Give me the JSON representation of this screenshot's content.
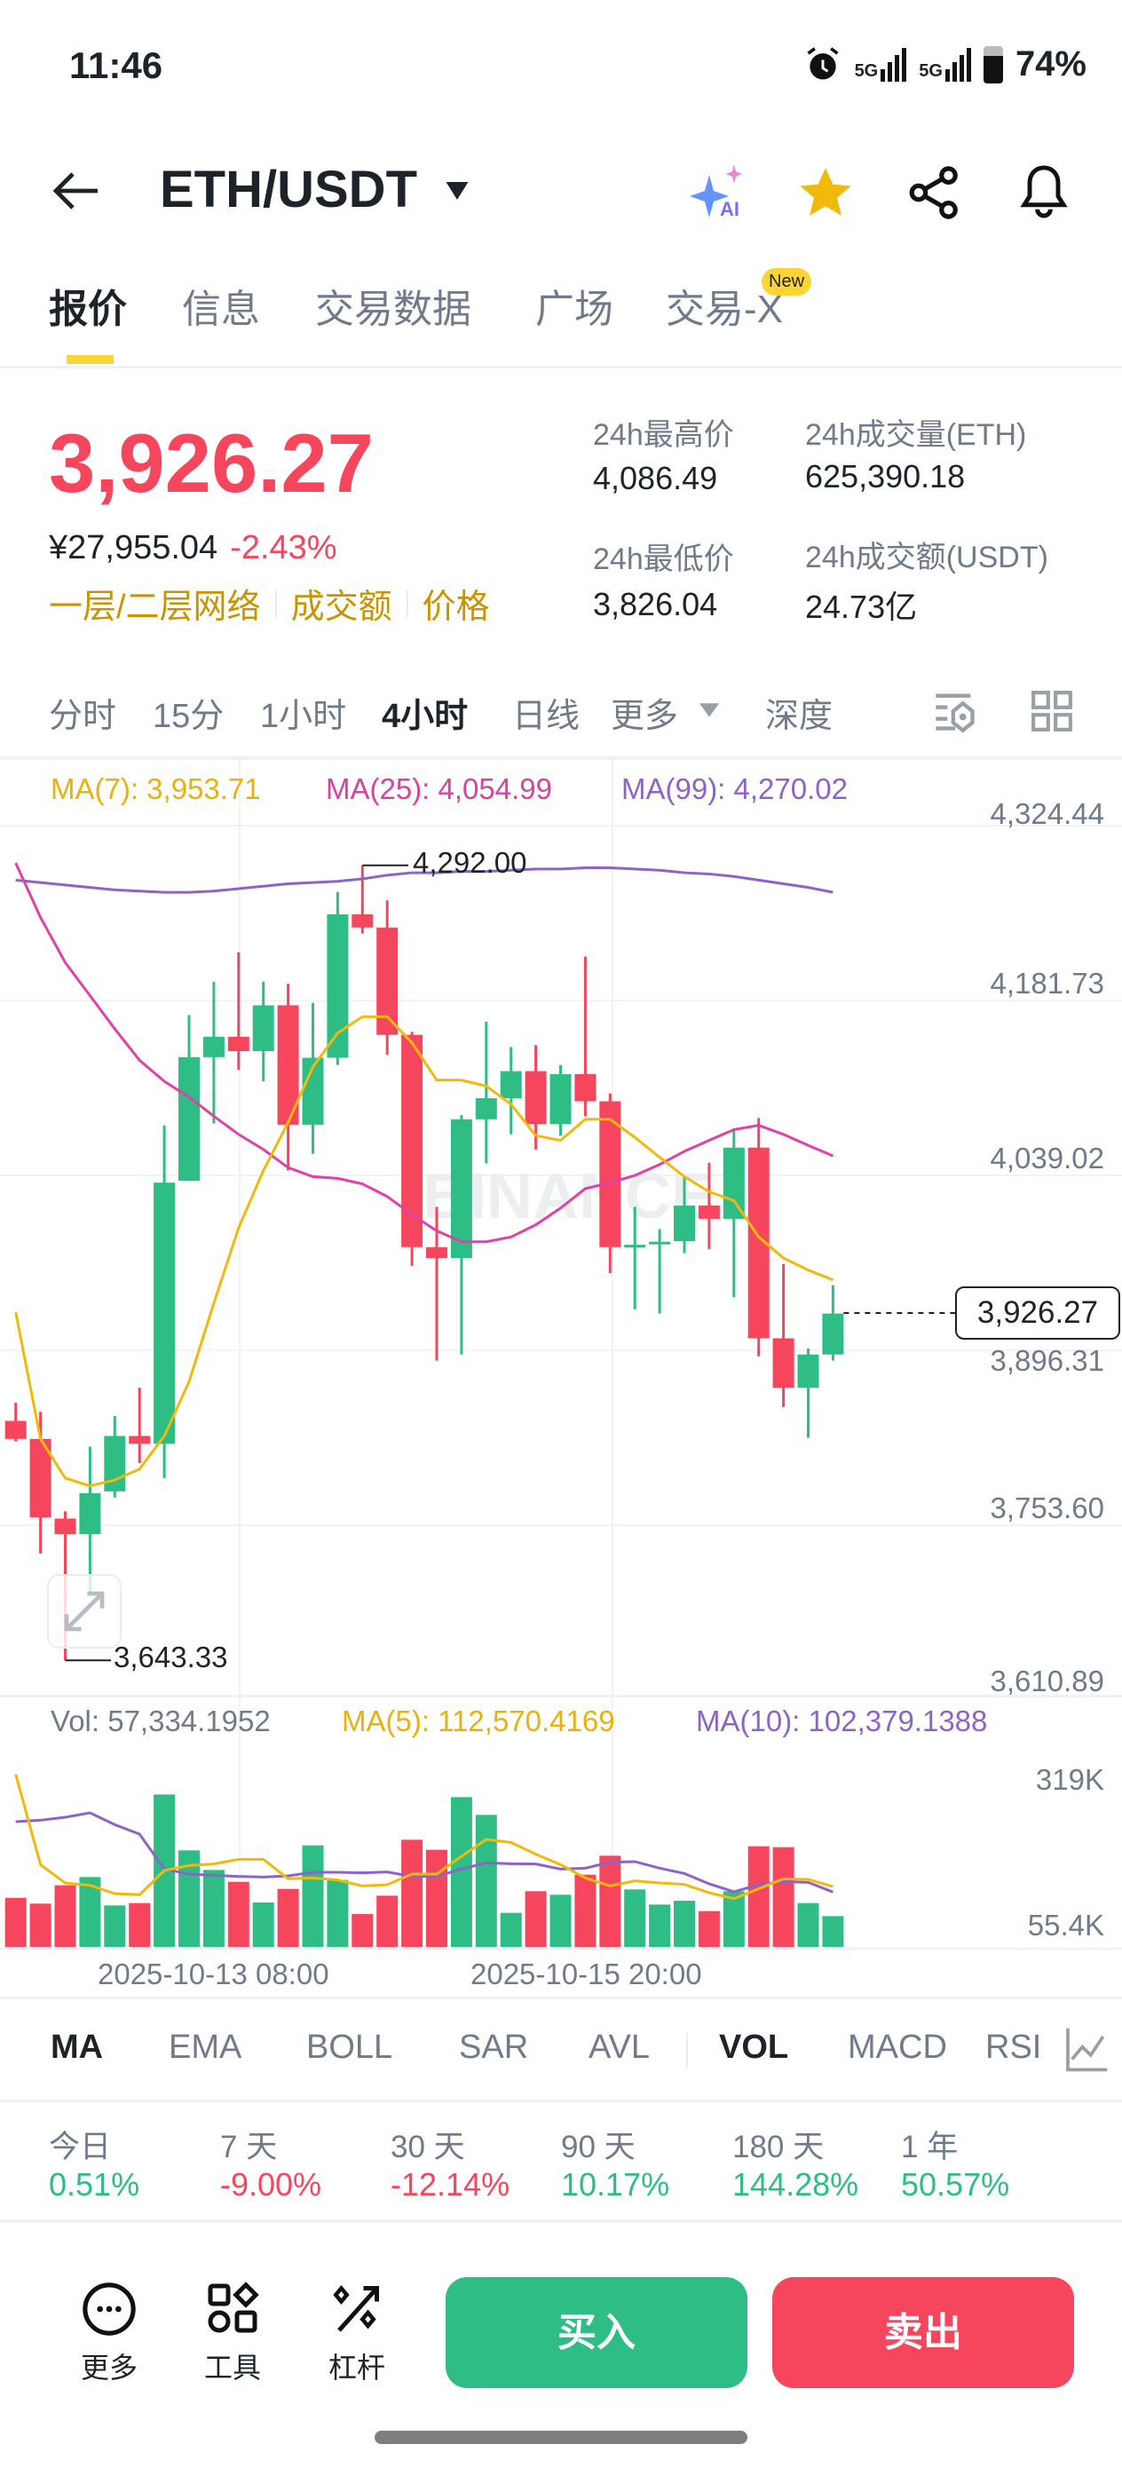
{
  "status": {
    "time": "11:46",
    "battery": "74%",
    "net1": "5G",
    "net2": "5G"
  },
  "header": {
    "title": "ETH/USDT",
    "ai_label": "AI"
  },
  "tabs": [
    {
      "label": "报价"
    },
    {
      "label": "信息"
    },
    {
      "label": "交易数据"
    },
    {
      "label": "广场"
    },
    {
      "label": "交易-X",
      "badge": "New"
    }
  ],
  "ticker": {
    "price": "3,926.27",
    "cny": "¥27,955.04",
    "change": "-2.43%",
    "links": [
      "一层/二层网络",
      "成交额",
      "价格"
    ],
    "high_label": "24h最高价",
    "high": "4,086.49",
    "low_label": "24h最低价",
    "low": "3,826.04",
    "vol_label": "24h成交量(ETH)",
    "vol": "625,390.18",
    "amt_label": "24h成交额(USDT)",
    "amt": "24.73亿"
  },
  "intervals": [
    "分时",
    "15分",
    "1小时",
    "4小时",
    "日线",
    "更多",
    "深度"
  ],
  "active_interval": "4小时",
  "colors": {
    "up": "#2EBD85",
    "down": "#F6465D",
    "ma7": "#F0B90B",
    "ma25": "#E040A8",
    "ma99": "#8E63C7",
    "accent": "#FCD535"
  },
  "chart_data": [
    {
      "type": "candlestick",
      "legend": {
        "ma7": "MA(7): 3,953.71",
        "ma25": "MA(25): 4,054.99",
        "ma99": "MA(99): 4,270.02"
      },
      "y_ticks": [
        "4,324.44",
        "4,181.73",
        "4,039.02",
        "3,896.31",
        "3,753.60",
        "3,610.89"
      ],
      "ylim": [
        3610.89,
        4324.44
      ],
      "x_labels": [
        "2025-10-13 08:00",
        "2025-10-15 20:00"
      ],
      "current_price": "3,926.27",
      "high_marker": "4,292.00",
      "low_marker": "3,643.33",
      "watermark": "BINANCE",
      "candles": [
        [
          3838.7,
          3853.5,
          3822,
          3824.0
        ],
        [
          3824.0,
          3846.1,
          3730.5,
          3760.0
        ],
        [
          3759.0,
          3764.9,
          3643.33,
          3746.2
        ],
        [
          3746.2,
          3817.6,
          3696.0,
          3779.7
        ],
        [
          3781.2,
          3842.7,
          3776.2,
          3826.4
        ],
        [
          3826.4,
          3865.8,
          3804.3,
          3820.0
        ],
        [
          3820.0,
          4079.9,
          3792.0,
          4033.1
        ],
        [
          4034.6,
          4169.9,
          4034.6,
          4135.5
        ],
        [
          4135.5,
          4197.0,
          4081.3,
          4152.2
        ],
        [
          4152.2,
          4221.1,
          4125.1,
          4140.4
        ],
        [
          4140.4,
          4197.0,
          4115.8,
          4177.8
        ],
        [
          4177.8,
          4195.5,
          4043.0,
          4080.4
        ],
        [
          4080.4,
          4179.8,
          4056.7,
          4135.0
        ],
        [
          4135.0,
          4270.3,
          4129.1,
          4252.1
        ],
        [
          4252.1,
          4292.0,
          4236.3,
          4241.3
        ],
        [
          4241.3,
          4263.4,
          4137.4,
          4153.7
        ],
        [
          4153.7,
          4156.1,
          3965.2,
          3980.5
        ],
        [
          3980.5,
          4013.4,
          3887.9,
          3971.6
        ],
        [
          3971.6,
          4088.2,
          3892.9,
          4084.8
        ],
        [
          4084.8,
          4164.5,
          4048.9,
          4102.0
        ],
        [
          4102.0,
          4143.8,
          4072.5,
          4124.1
        ],
        [
          4124.1,
          4145.3,
          4060.2,
          4080.8
        ],
        [
          4080.8,
          4129.1,
          4071.5,
          4121.7
        ],
        [
          4121.7,
          4217.6,
          4087.2,
          4099.5
        ],
        [
          4099.5,
          4105.9,
          3959.3,
          3980.5
        ],
        [
          3980.5,
          4013.4,
          3929.8,
          3982.4
        ],
        [
          3982.9,
          3995.2,
          3926.3,
          3984.9
        ],
        [
          3985.4,
          4037.0,
          3975.5,
          4014.4
        ],
        [
          4014.4,
          4049.3,
          3979.0,
          4003.6
        ],
        [
          4003.6,
          4077.4,
          3939.6,
          4061.7
        ],
        [
          4061.7,
          4085.8,
          3891.4,
          3906.1
        ],
        [
          3906.1,
          3966.7,
          3850.0,
          3865.8
        ],
        [
          3865.8,
          3897.8,
          3825.0,
          3892.9
        ],
        [
          3892.9,
          3949.5,
          3887.9,
          3926.27
        ]
      ],
      "ma7": [
        3927.3,
        3824.0,
        3792.0,
        3785.6,
        3790.5,
        3799.4,
        3826.4,
        3870.7,
        3934.7,
        3996.2,
        4043.0,
        4082.3,
        4127.6,
        4155.2,
        4168.5,
        4168.5,
        4147.3,
        4116.8,
        4116.8,
        4111.9,
        4097.1,
        4071.5,
        4067.6,
        4084.8,
        4084.8,
        4070.0,
        4053.8,
        4038.0,
        4025.7,
        4018.4,
        3988.8,
        3971.6,
        3961.8,
        3953.71
      ],
      "ma25": [
        4293.9,
        4249.6,
        4212.7,
        4185.7,
        4158.6,
        4133.0,
        4115.8,
        4103.0,
        4087.3,
        4072.5,
        4060.2,
        4045.4,
        4038.0,
        4036.6,
        4032.1,
        4021.8,
        4007.0,
        3993.8,
        3984.9,
        3984.9,
        3988.8,
        3998.7,
        4012.4,
        4028.2,
        4033.1,
        4039.0,
        4047.9,
        4058.7,
        4067.6,
        4076.4,
        4079.9,
        4072.5,
        4063.6,
        4054.99
      ],
      "ma99": [
        4280,
        4278,
        4276,
        4274,
        4272,
        4271,
        4270,
        4270,
        4271,
        4273,
        4275,
        4277,
        4278,
        4279,
        4281,
        4284,
        4286,
        4286,
        4287,
        4287,
        4288,
        4289,
        4289,
        4290,
        4290,
        4289,
        4288,
        4286,
        4285,
        4283,
        4280,
        4277,
        4274,
        4270.02
      ]
    },
    {
      "type": "bar",
      "legend": {
        "vol": "Vol: 57,334.1952",
        "ma5": "MA(5): 112,570.4169",
        "ma10": "MA(10): 102,379.1388"
      },
      "y_ticks": [
        "319K",
        "55.4K"
      ],
      "unit": "K",
      "values": [
        91.6,
        80.6,
        114.8,
        130.3,
        77.3,
        81.7,
        284.3,
        180.0,
        143.5,
        121.4,
        82.8,
        108.2,
        189.3,
        124.8,
        61.3,
        95.5,
        199.8,
        181.1,
        279.3,
        246.2,
        63.5,
        103.8,
        97.2,
        134.7,
        170.0,
        107.1,
        78.9,
        86.1,
        66.8,
        103.8,
        187.7,
        186.0,
        81.7,
        57.33
      ],
      "ma5": [
        321.8,
        153.5,
        119.2,
        114.8,
        99.4,
        97.2,
        142.4,
        151.8,
        154.6,
        163.4,
        163.4,
        127,
        128.6,
        124.8,
        113.7,
        115.9,
        135.8,
        135.8,
        168.9,
        200.4,
        194.9,
        172.8,
        153.5,
        128.6,
        113.7,
        123.1,
        119.2,
        116.5,
        101,
        90,
        108.2,
        127,
        125.9,
        112.57
      ],
      "ma10": [
        233.5,
        236.3,
        241.8,
        250,
        228,
        210.3,
        145.2,
        135.8,
        133.6,
        131.4,
        130.3,
        132.5,
        139.1,
        139.1,
        138,
        139.7,
        131.4,
        131.4,
        145.2,
        156.8,
        155.1,
        154.6,
        145.2,
        146.8,
        157.9,
        159,
        146.8,
        136.9,
        117.6,
        102.7,
        115.9,
        122,
        120.3,
        102.38
      ]
    }
  ],
  "indicators": [
    "MA",
    "EMA",
    "BOLL",
    "SAR",
    "AVL",
    "VOL",
    "MACD",
    "RSI"
  ],
  "performance": [
    {
      "label": "今日",
      "value": "0.51%",
      "dir": "up"
    },
    {
      "label": "7 天",
      "value": "-9.00%",
      "dir": "down"
    },
    {
      "label": "30 天",
      "value": "-12.14%",
      "dir": "down"
    },
    {
      "label": "90 天",
      "value": "10.17%",
      "dir": "up"
    },
    {
      "label": "180 天",
      "value": "144.28%",
      "dir": "up"
    },
    {
      "label": "1 年",
      "value": "50.57%",
      "dir": "up"
    }
  ],
  "bottom": {
    "more": "更多",
    "tools": "工具",
    "leverage": "杠杆",
    "buy": "买入",
    "sell": "卖出"
  }
}
